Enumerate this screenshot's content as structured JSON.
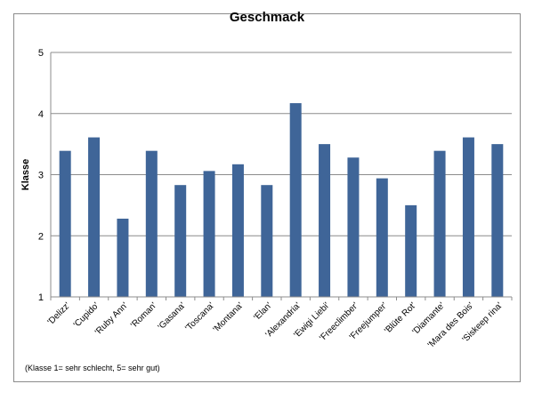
{
  "chart_data": {
    "type": "bar",
    "title": "Geschmack",
    "xlabel": "",
    "ylabel": "Klasse",
    "ylim": [
      1,
      5
    ],
    "yticks": [
      "1",
      "2",
      "3",
      "4",
      "5"
    ],
    "grid": true,
    "bar_color": "#3f6598",
    "categories": [
      "'Delizz'",
      "'Cupido'",
      "'Ruby Ann'",
      "'Roman'",
      "'Gasana'",
      "'Toscana'",
      "'Montana'",
      "'Elan'",
      "'Alexandria'",
      "'Ewigi Liebi'",
      "'Freeclimber'",
      "'Freejumper'",
      "'Blüte Rot'",
      "'Diamante'",
      "'Mara des Bois'",
      "'Siskeep rina'"
    ],
    "values": [
      3.39,
      3.61,
      2.28,
      3.39,
      2.83,
      3.06,
      3.17,
      2.83,
      4.17,
      3.5,
      3.28,
      2.94,
      2.5,
      3.39,
      3.61,
      3.5
    ],
    "footnote": "(Klasse 1= sehr schlecht, 5= sehr gut)"
  }
}
